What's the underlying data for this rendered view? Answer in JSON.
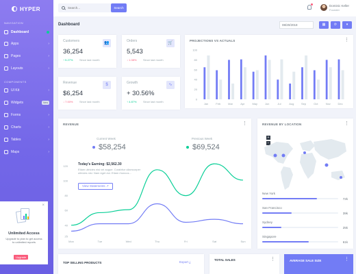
{
  "app": {
    "name": "HYPER"
  },
  "sidebar": {
    "sections": [
      {
        "title": "NAVIGATION",
        "items": [
          {
            "label": "Dashboard",
            "badge": "",
            "badge_style": "",
            "active": true
          },
          {
            "label": "Apps",
            "badge": "",
            "active": false
          },
          {
            "label": "Pages",
            "badge": "",
            "active": false
          },
          {
            "label": "Layouts",
            "badge": "",
            "active": false
          }
        ]
      },
      {
        "title": "COMPONENTS",
        "items": [
          {
            "label": "UI Kit",
            "badge": "",
            "active": false
          },
          {
            "label": "Widgets",
            "badge": "New",
            "active": false
          },
          {
            "label": "Forms",
            "badge": "",
            "active": false
          },
          {
            "label": "Charts",
            "badge": "",
            "active": false
          },
          {
            "label": "Tables",
            "badge": "",
            "active": false
          },
          {
            "label": "Maps",
            "badge": "",
            "active": false
          }
        ]
      }
    ],
    "promo": {
      "title": "Unlimited Access",
      "text": "Upgrade to plan to get access to unlimited reports",
      "button": "Upgrade"
    },
    "footer": "www.heritagechristiancollege"
  },
  "topbar": {
    "search_placeholder": "Search...",
    "search_button": "Search",
    "user_name": "Dominic Keller",
    "user_role": "Founder"
  },
  "page": {
    "title": "Dashboard",
    "date": "08/20/2018",
    "icons": [
      "calendar-icon",
      "refresh-icon",
      "filter-icon"
    ]
  },
  "stats": [
    {
      "label": "Customers",
      "value": "36,254",
      "delta": "5.27%",
      "direction": "up",
      "since": "Since last month",
      "icon": "users-icon"
    },
    {
      "label": "Orders",
      "value": "5,543",
      "delta": "1.08%",
      "direction": "down",
      "since": "Since last month",
      "icon": "cart-icon"
    },
    {
      "label": "Revenue",
      "value": "$6,254",
      "delta": "7.00%",
      "direction": "down",
      "since": "Since last month",
      "icon": "currency-icon"
    },
    {
      "label": "Growth",
      "value": "+ 30.56%",
      "delta": "4.87%",
      "direction": "up",
      "since": "Since last month",
      "icon": "pulse-icon"
    }
  ],
  "projections": {
    "title": "PROJECTIONS VS ACTUALS",
    "chart_data": {
      "type": "bar",
      "categories": [
        "Jan",
        "Feb",
        "Mar",
        "Apr",
        "May",
        "Jun",
        "Jul",
        "Aug",
        "Sep",
        "Oct",
        "Nov",
        "Dec"
      ],
      "series": [
        {
          "name": "",
          "color": "#727cf5",
          "values": [
            65,
            59,
            80,
            81,
            56,
            89,
            40,
            32,
            65,
            59,
            80,
            81
          ]
        },
        {
          "name": "",
          "color": "#e3eaef",
          "values": [
            89,
            40,
            32,
            65,
            59,
            80,
            81,
            56,
            89,
            40,
            65,
            59
          ]
        }
      ],
      "ylim": [
        0,
        100
      ],
      "yticks": [
        0,
        20,
        40,
        60,
        80,
        100
      ]
    }
  },
  "revenue": {
    "title": "REVENUE",
    "current_label": "Current Week",
    "current_value": "$58,254",
    "previous_label": "Previous Week",
    "previous_value": "$69,524",
    "tooltip_title": "Today's Earning: $2,562.30",
    "tooltip_text": "Etiam ultricies nisi vel augue. Curabitur ullamcorper ultricies nisi. Nam eget dui. Etiam rhoncus...",
    "tooltip_button": "View Statements",
    "chart_data": {
      "type": "line",
      "categories": [
        "Mon",
        "Tue",
        "Wed",
        "Thu",
        "Fri",
        "Sat",
        "Sun"
      ],
      "series": [
        {
          "name": "Current Week",
          "color": "#727cf5",
          "values": [
            32,
            42,
            42,
            69,
            44,
            48,
            42
          ]
        },
        {
          "name": "Previous Week",
          "color": "#0acf97",
          "values": [
            40,
            57,
            61,
            115,
            80,
            123,
            101
          ]
        }
      ],
      "ylim": [
        25,
        125
      ],
      "yticks": [
        25,
        40,
        60,
        80,
        100,
        120
      ]
    }
  },
  "location": {
    "title": "REVENUE BY LOCATION",
    "map_icons": [
      "zoom-in-icon",
      "zoom-out-icon"
    ],
    "items": [
      {
        "name": "New York",
        "percent": "72k",
        "fill": 0.72
      },
      {
        "name": "San Francisco",
        "percent": "39k",
        "fill": 0.39
      },
      {
        "name": "Sydney",
        "percent": "25k",
        "fill": 0.25
      },
      {
        "name": "Singapore",
        "percent": "61k",
        "fill": 0.61
      }
    ]
  },
  "bottom": {
    "top_selling": "TOP SELLING PRODUCTS",
    "export": "Export",
    "total_sales": "TOTAL SALES",
    "average_sale": "AVERAGE SALE SIZE"
  }
}
